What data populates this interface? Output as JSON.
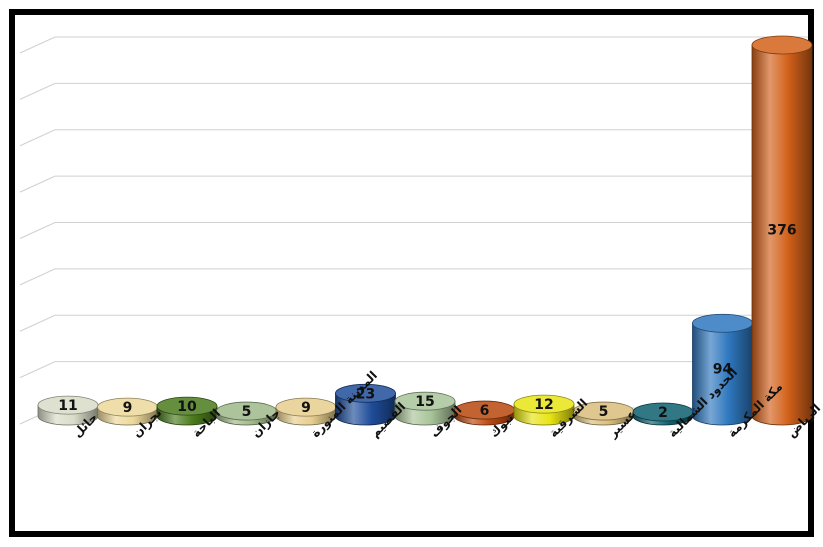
{
  "chart_data": {
    "type": "bar",
    "style": "3d-cylinder",
    "grid": true,
    "legend": "none",
    "ylim": [
      0,
      400
    ],
    "categories": [
      "حائل",
      "نجران",
      "الباحة",
      "جازان",
      "المدينة المنورة",
      "القصيم",
      "الجوف",
      "تبوك",
      "الشرقية",
      "عسير",
      "الحدود الشمالية",
      "مكة المكرمة",
      "الرياض"
    ],
    "values": [
      11,
      9,
      10,
      5,
      9,
      23,
      15,
      6,
      12,
      5,
      2,
      94,
      376
    ],
    "colors": [
      "#d8dcc8",
      "#ecd89a",
      "#4a7a1c",
      "#9fb889",
      "#e6cd8e",
      "#1f4d9a",
      "#a9c49a",
      "#b9470e",
      "#e8e414",
      "#d9bd7c",
      "#0e5f6e",
      "#2f78bf",
      "#d2611a"
    ]
  }
}
